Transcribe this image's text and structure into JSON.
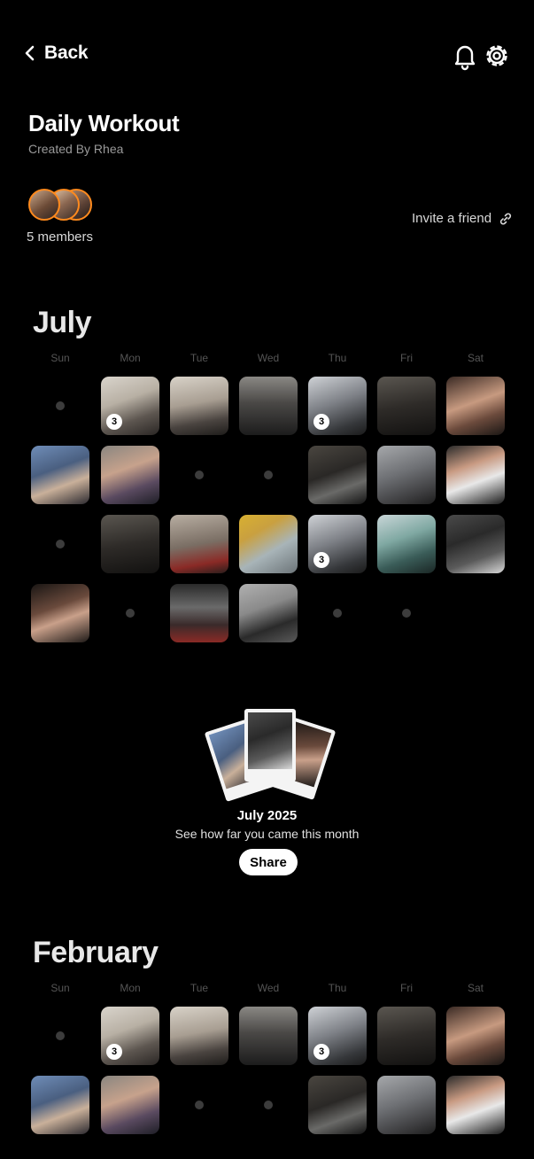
{
  "header": {
    "back_label": "Back"
  },
  "group": {
    "title": "Daily Workout",
    "created_by": "Created By Rhea",
    "members_label": "5 members",
    "invite_label": "Invite a friend"
  },
  "weekdays": [
    "Sun",
    "Mon",
    "Tue",
    "Wed",
    "Thu",
    "Fri",
    "Sat"
  ],
  "months": [
    {
      "name": "July",
      "rows": [
        [
          {
            "type": "empty"
          },
          {
            "type": "photo",
            "badge": "3",
            "theme": "bright-gym"
          },
          {
            "type": "photo",
            "theme": "mirror-light"
          },
          {
            "type": "photo",
            "theme": "dark-mirror"
          },
          {
            "type": "photo",
            "badge": "3",
            "theme": "gym-floor"
          },
          {
            "type": "photo",
            "theme": "dark-gym"
          },
          {
            "type": "photo",
            "theme": "dumbbell-legs"
          }
        ],
        [
          {
            "type": "photo",
            "theme": "blue-seated"
          },
          {
            "type": "photo",
            "theme": "stretch"
          },
          {
            "type": "empty"
          },
          {
            "type": "empty"
          },
          {
            "type": "photo",
            "theme": "dark-legs"
          },
          {
            "type": "photo",
            "theme": "machine-grey"
          },
          {
            "type": "photo",
            "theme": "black-white"
          }
        ],
        [
          {
            "type": "empty"
          },
          {
            "type": "photo",
            "theme": "dark-gym"
          },
          {
            "type": "photo",
            "theme": "mirror-red"
          },
          {
            "type": "photo",
            "theme": "yellow-legs"
          },
          {
            "type": "photo",
            "badge": "3",
            "theme": "gym-floor"
          },
          {
            "type": "photo",
            "theme": "window-teal"
          },
          {
            "type": "photo",
            "theme": "dumbbells-floor"
          }
        ],
        [
          {
            "type": "photo",
            "theme": "flex-dark"
          },
          {
            "type": "empty"
          },
          {
            "type": "photo",
            "theme": "dark-mirror-red"
          },
          {
            "type": "photo",
            "theme": "plate-grey"
          },
          {
            "type": "empty"
          },
          {
            "type": "empty"
          },
          {
            "type": "none"
          }
        ]
      ]
    },
    {
      "name": "February",
      "rows": [
        [
          {
            "type": "empty"
          },
          {
            "type": "photo",
            "badge": "3",
            "theme": "bright-gym"
          },
          {
            "type": "photo",
            "theme": "mirror-light"
          },
          {
            "type": "photo",
            "theme": "dark-mirror"
          },
          {
            "type": "photo",
            "badge": "3",
            "theme": "gym-floor"
          },
          {
            "type": "photo",
            "theme": "dark-gym"
          },
          {
            "type": "photo",
            "theme": "dumbbell-legs"
          }
        ],
        [
          {
            "type": "photo",
            "theme": "blue-seated"
          },
          {
            "type": "photo",
            "theme": "stretch"
          },
          {
            "type": "empty"
          },
          {
            "type": "empty"
          },
          {
            "type": "photo",
            "theme": "dark-legs"
          },
          {
            "type": "photo",
            "theme": "machine-grey"
          },
          {
            "type": "photo",
            "theme": "black-white"
          }
        ]
      ]
    }
  ],
  "recap": {
    "title": "July 2025",
    "subtitle": "See how far you came this month",
    "share_label": "Share"
  },
  "themes": {
    "bright-gym": "linear-gradient(160deg,#d9d4cc 0%,#b8b0a4 40%,#5d5650 70%,#2a2624 100%)",
    "mirror-light": "linear-gradient(170deg,#d8d2c8 0%,#a89e92 45%,#4a4440 75%,#1e1c1a 100%)",
    "dark-mirror": "linear-gradient(180deg,#8a8884 0%,#4a4846 45%,#1c1c1c 100%)",
    "gym-floor": "linear-gradient(160deg,#cfd2d6 0%,#7d8086 45%,#35373a 80%,#1a1a1a 100%)",
    "dark-gym": "linear-gradient(170deg,#5a5650 0%,#2e2b28 50%,#121110 100%)",
    "dumbbell-legs": "linear-gradient(160deg,#3a2a24 0%,#c79a80 45%,#6b4a3c 70%,#1a1614 100%)",
    "blue-seated": "linear-gradient(160deg,#6f8db8 0%,#4a5f80 40%,#c9b09a 65%,#2c2a30 100%)",
    "stretch": "linear-gradient(160deg,#8a8680 0%,#c7a28c 40%,#5a4a60 70%,#1e1e26 100%)",
    "dark-legs": "linear-gradient(160deg,#4a4640 0%,#2a2826 45%,#6a6a68 70%,#141414 100%)",
    "machine-grey": "linear-gradient(160deg,#a6a8ab 0%,#6e7074 45%,#3c3c3e 80%,#1c1c1c 100%)",
    "black-white": "linear-gradient(160deg,#2a2a2a 0%,#c89a82 35%,#e8e8e8 60%,#1a1a1a 100%)",
    "mirror-red": "linear-gradient(170deg,#b8aea2 0%,#7a6e64 50%,#8a2a26 80%,#2a1e1c 100%)",
    "yellow-legs": "linear-gradient(150deg,#d8b030 0%,#c9a040 30%,#a8b4b8 60%,#6c7478 100%)",
    "window-teal": "linear-gradient(160deg,#c9d6d8 0%,#7fa8a2 40%,#3a5c58 70%,#1a2624 100%)",
    "dumbbells-floor": "linear-gradient(160deg,#4a4a4a 0%,#2a2a2a 40%,#5a5a5a 70%,#d8d8d8 100%)",
    "flex-dark": "linear-gradient(160deg,#1a1614 0%,#6a4a3c 40%,#c9a08a 60%,#1e1a18 100%)",
    "dark-mirror-red": "linear-gradient(180deg,#2a2a2a 0%,#6a6a6a 40%,#3a2a2a 70%,#8a2a26 100%)",
    "plate-grey": "linear-gradient(160deg,#b0b0b0 0%,#8a8a8a 40%,#2a2a2a 70%,#5a5a5a 100%)"
  },
  "recap_cards": [
    "blue-seated",
    "dumbbells-floor",
    "flex-dark"
  ]
}
